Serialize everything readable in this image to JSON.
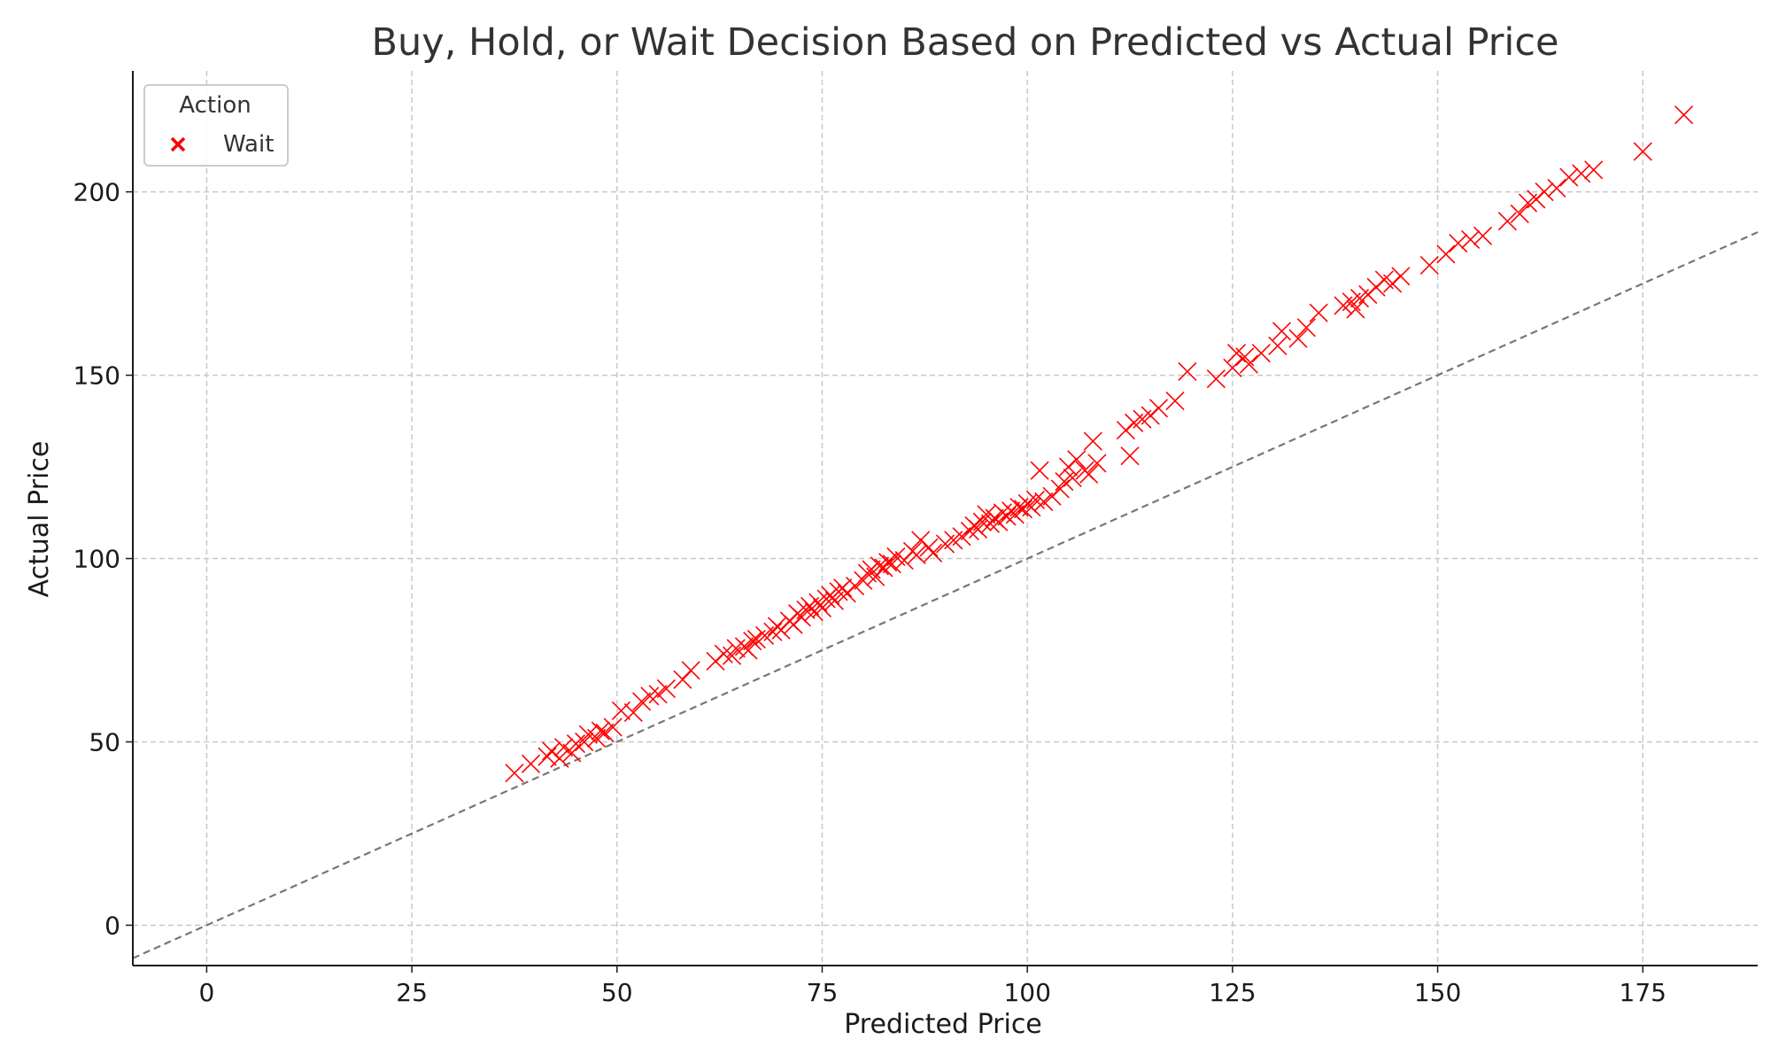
{
  "chart_data": {
    "type": "scatter",
    "title": "Buy, Hold, or Wait Decision Based on Predicted vs Actual Price",
    "xlabel": "Predicted Price",
    "ylabel": "Actual Price",
    "xlim": [
      -9,
      189
    ],
    "ylim": [
      -11,
      233
    ],
    "x_ticks": [
      0,
      25,
      50,
      75,
      100,
      125,
      150,
      175
    ],
    "y_ticks": [
      0,
      50,
      100,
      150,
      200
    ],
    "grid": true,
    "reference_line": {
      "style": "dashed",
      "color": "#777777",
      "slope": 1,
      "intercept": 0
    },
    "legend": {
      "title": "Action",
      "placement": "top-left",
      "entries": [
        "Wait"
      ]
    },
    "marker": "x",
    "series": [
      {
        "name": "Wait",
        "color": "#ff0000",
        "points": [
          [
            37.5,
            41.5
          ],
          [
            39.5,
            44
          ],
          [
            41.5,
            46
          ],
          [
            42,
            47.5
          ],
          [
            43,
            45.5
          ],
          [
            43.5,
            48.5
          ],
          [
            44.5,
            47
          ],
          [
            45,
            49.5
          ],
          [
            46,
            50
          ],
          [
            46.5,
            52
          ],
          [
            47.5,
            51
          ],
          [
            48,
            53
          ],
          [
            48.5,
            52.5
          ],
          [
            49.5,
            54
          ],
          [
            50.5,
            58.5
          ],
          [
            52,
            58
          ],
          [
            53,
            61
          ],
          [
            54,
            62.5
          ],
          [
            55,
            63
          ],
          [
            56,
            64.5
          ],
          [
            58,
            67
          ],
          [
            59,
            69.5
          ],
          [
            62,
            72
          ],
          [
            63,
            74
          ],
          [
            64,
            73.5
          ],
          [
            64.5,
            75.5
          ],
          [
            65.5,
            76
          ],
          [
            66,
            75
          ],
          [
            66.5,
            77.5
          ],
          [
            67,
            78
          ],
          [
            68,
            79
          ],
          [
            69,
            80
          ],
          [
            69.5,
            81.5
          ],
          [
            70,
            80.5
          ],
          [
            71,
            83
          ],
          [
            71.5,
            82
          ],
          [
            72,
            85
          ],
          [
            72.5,
            84
          ],
          [
            73,
            86
          ],
          [
            73.5,
            87
          ],
          [
            74,
            85.5
          ],
          [
            74.5,
            88
          ],
          [
            75,
            86.5
          ],
          [
            75.5,
            89
          ],
          [
            76,
            90
          ],
          [
            76.5,
            88.5
          ],
          [
            77,
            91
          ],
          [
            77.5,
            92
          ],
          [
            78,
            90.5
          ],
          [
            79,
            92.5
          ],
          [
            80,
            94
          ],
          [
            80.5,
            96
          ],
          [
            81,
            97
          ],
          [
            81.5,
            95
          ],
          [
            82,
            98
          ],
          [
            82.5,
            97.5
          ],
          [
            83,
            99
          ],
          [
            83.5,
            98.5
          ],
          [
            84,
            100.5
          ],
          [
            85,
            99.5
          ],
          [
            86,
            102
          ],
          [
            86.5,
            101
          ],
          [
            87,
            105
          ],
          [
            88,
            103
          ],
          [
            88.5,
            101.5
          ],
          [
            90,
            104
          ],
          [
            91,
            105
          ],
          [
            92,
            106
          ],
          [
            93,
            107.5
          ],
          [
            93.5,
            109
          ],
          [
            94,
            108
          ],
          [
            94.5,
            110
          ],
          [
            95,
            112
          ],
          [
            95.5,
            109.5
          ],
          [
            96,
            111
          ],
          [
            96.5,
            110
          ],
          [
            97,
            112.5
          ],
          [
            97.5,
            111.5
          ],
          [
            98,
            113
          ],
          [
            98.5,
            112
          ],
          [
            99,
            114
          ],
          [
            99.5,
            113.5
          ],
          [
            100,
            115
          ],
          [
            100.5,
            114
          ],
          [
            101,
            116
          ],
          [
            101.5,
            124
          ],
          [
            102,
            115.5
          ],
          [
            103,
            117
          ],
          [
            104,
            119
          ],
          [
            104.5,
            121
          ],
          [
            105,
            125
          ],
          [
            105.5,
            122
          ],
          [
            106,
            127
          ],
          [
            107,
            124
          ],
          [
            107.5,
            123
          ],
          [
            108,
            132
          ],
          [
            108.5,
            126
          ],
          [
            112,
            135
          ],
          [
            112.5,
            128
          ],
          [
            113,
            137
          ],
          [
            114,
            138
          ],
          [
            115,
            139
          ],
          [
            116,
            141
          ],
          [
            118,
            143
          ],
          [
            119.5,
            151
          ],
          [
            123,
            149
          ],
          [
            125,
            152
          ],
          [
            125.5,
            156
          ],
          [
            126.5,
            155
          ],
          [
            127,
            153
          ],
          [
            128.5,
            156
          ],
          [
            130.5,
            158
          ],
          [
            131,
            162
          ],
          [
            133,
            160
          ],
          [
            134,
            163
          ],
          [
            135.5,
            167
          ],
          [
            138.5,
            169
          ],
          [
            139.5,
            170
          ],
          [
            140,
            168
          ],
          [
            140.5,
            171
          ],
          [
            141.5,
            172
          ],
          [
            142.5,
            174
          ],
          [
            143.5,
            176
          ],
          [
            144.5,
            175
          ],
          [
            145.5,
            177
          ],
          [
            149,
            180
          ],
          [
            151,
            183
          ],
          [
            152.5,
            186
          ],
          [
            154,
            187
          ],
          [
            155.5,
            188
          ],
          [
            158.5,
            192
          ],
          [
            160,
            194
          ],
          [
            161,
            197
          ],
          [
            162,
            198
          ],
          [
            163,
            200
          ],
          [
            164.5,
            201
          ],
          [
            166,
            204
          ],
          [
            167.5,
            205
          ],
          [
            169,
            206
          ],
          [
            175,
            211
          ],
          [
            180,
            221
          ]
        ]
      }
    ]
  }
}
